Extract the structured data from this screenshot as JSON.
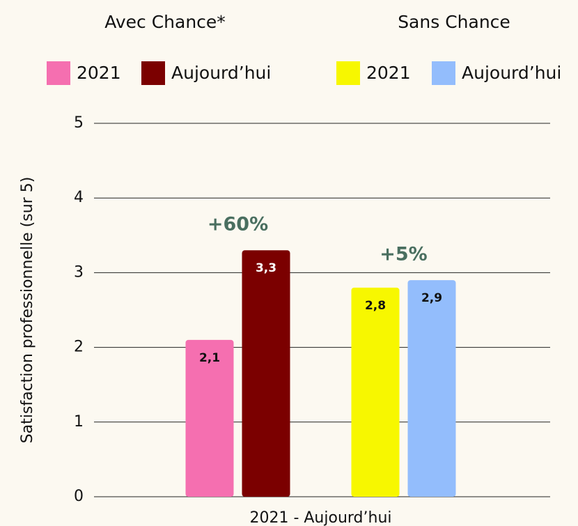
{
  "chart_data": {
    "type": "bar",
    "categories": [
      "2021 - Aujourd’hui"
    ],
    "ylabel": "Satisfaction professionnelle (sur 5)",
    "ylim": [
      0,
      5
    ],
    "yticks": [
      0,
      1,
      2,
      3,
      4,
      5
    ],
    "grid": true,
    "groups": [
      {
        "name": "Avec Chance*",
        "annotation": "+60%",
        "annotation_color": "#4a6f60",
        "series": [
          {
            "name": "2021",
            "color": "#f56fb0",
            "values": [
              2.1
            ],
            "value_labels": [
              "2,1"
            ],
            "label_color": "#111111"
          },
          {
            "name": "Aujourd’hui",
            "color": "#7b0000",
            "values": [
              3.3
            ],
            "value_labels": [
              "3,3"
            ],
            "label_color": "#ffffff"
          }
        ]
      },
      {
        "name": "Sans Chance",
        "annotation": "+5%",
        "annotation_color": "#4a6f60",
        "series": [
          {
            "name": "2021",
            "color": "#f7f700",
            "values": [
              2.8
            ],
            "value_labels": [
              "2,8"
            ],
            "label_color": "#111111"
          },
          {
            "name": "Aujourd’hui",
            "color": "#93bdfc",
            "values": [
              2.9
            ],
            "value_labels": [
              "2,9"
            ],
            "label_color": "#111111"
          }
        ]
      }
    ]
  }
}
